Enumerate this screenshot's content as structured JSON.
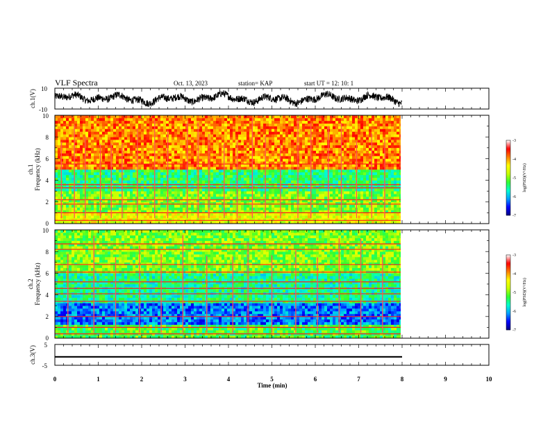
{
  "header": {
    "title": "VLF Spectra",
    "date": "Oct. 13, 2023",
    "station": "station= KAP",
    "start": "start  UT =   12: 10: 1"
  },
  "colors": {
    "trace": "#000000",
    "axis": "#000000",
    "colormap": [
      "#000080",
      "#0000ff",
      "#00a0ff",
      "#00ffd0",
      "#30ff30",
      "#c8ff00",
      "#ffff00",
      "#ff8000",
      "#ff0000",
      "#ffffff"
    ]
  },
  "chart_data": [
    {
      "type": "line",
      "panel": "ch1-waveform",
      "ylabel": "ch.1(V)",
      "ylim": [
        -10,
        10
      ],
      "yticks": [
        "10",
        "-10"
      ],
      "xlim": [
        0,
        10
      ],
      "data_extent_min": [
        0,
        8
      ],
      "description_of_signal": "noisy waveform oscillating roughly between -8 and +8 V from 0 to 8 min"
    },
    {
      "type": "heatmap",
      "panel": "ch1-spectrogram",
      "ylabel_line1": "ch.1",
      "ylabel_line2": "Frequency  (kHz)",
      "xlim": [
        0,
        10
      ],
      "ylim": [
        0,
        10
      ],
      "yticks": [
        "0",
        "2",
        "4",
        "6",
        "8",
        "10"
      ],
      "data_extent_min": [
        0,
        8
      ],
      "colorbar": {
        "label": "log(PSD)(V²/Hz)",
        "range": [
          -7,
          -3
        ],
        "ticks": [
          "-3",
          "-4",
          "-5",
          "-6",
          "-7"
        ]
      },
      "bands_khz": [
        {
          "range": [
            0,
            1
          ],
          "level": -4.5
        },
        {
          "range": [
            1,
            3
          ],
          "level": -5.0
        },
        {
          "range": [
            3,
            5
          ],
          "level": -5.4
        },
        {
          "range": [
            5,
            10
          ],
          "level": -3.9
        }
      ],
      "horizontal_lines_khz": [
        0.3,
        1.0,
        1.8,
        2.2,
        3.3,
        3.6,
        5.5
      ],
      "vertical_impulses_min": [
        0.15,
        0.45,
        0.7,
        1.05,
        1.3,
        1.55,
        1.9,
        2.3,
        2.6,
        3.05,
        3.3,
        3.55,
        3.9,
        4.2,
        4.55,
        4.85,
        5.2,
        5.6,
        5.9,
        6.3,
        6.6,
        6.95,
        7.3,
        7.6
      ]
    },
    {
      "type": "heatmap",
      "panel": "ch2-spectrogram",
      "ylabel_line1": "ch.2",
      "ylabel_line2": "Frequency  (kHz)",
      "xlim": [
        0,
        10
      ],
      "ylim": [
        0,
        10
      ],
      "yticks": [
        "0",
        "2",
        "4",
        "6",
        "8",
        "10"
      ],
      "data_extent_min": [
        0,
        8
      ],
      "colorbar": {
        "label": "log(PSD)(V²/Hz)",
        "range": [
          -7,
          -3
        ],
        "ticks": [
          "-3",
          "-4",
          "-5",
          "-6",
          "-7"
        ]
      },
      "bands_khz": [
        {
          "range": [
            0,
            1.2
          ],
          "level": -5.2
        },
        {
          "range": [
            1.2,
            3.3
          ],
          "level": -6.2
        },
        {
          "range": [
            3.3,
            6
          ],
          "level": -5.5
        },
        {
          "range": [
            6,
            10
          ],
          "level": -5.0
        }
      ],
      "horizontal_lines_khz": [
        0.4,
        1.0,
        2.0,
        3.4,
        4.1,
        4.6,
        5.2,
        6.1,
        6.8,
        8.2,
        8.7
      ],
      "vertical_impulses_min": [
        0.3,
        0.9,
        1.4,
        1.95,
        2.45,
        2.95,
        3.5,
        4.1,
        4.45,
        5.0,
        5.55,
        6.05,
        6.55,
        7.05,
        7.55
      ]
    },
    {
      "type": "line",
      "panel": "ch3-waveform",
      "ylabel": "ch.3(V)",
      "ylim": [
        -5,
        5
      ],
      "yticks": [
        "5",
        "-5"
      ],
      "xlim": [
        0,
        10
      ],
      "xticks": [
        "0",
        "1",
        "2",
        "3",
        "4",
        "5",
        "6",
        "7",
        "8",
        "9",
        "10"
      ],
      "xlabel": "Time  (min)",
      "data_extent_min": [
        0,
        8
      ],
      "level_v": [
        -1.3,
        -0.6
      ]
    }
  ]
}
